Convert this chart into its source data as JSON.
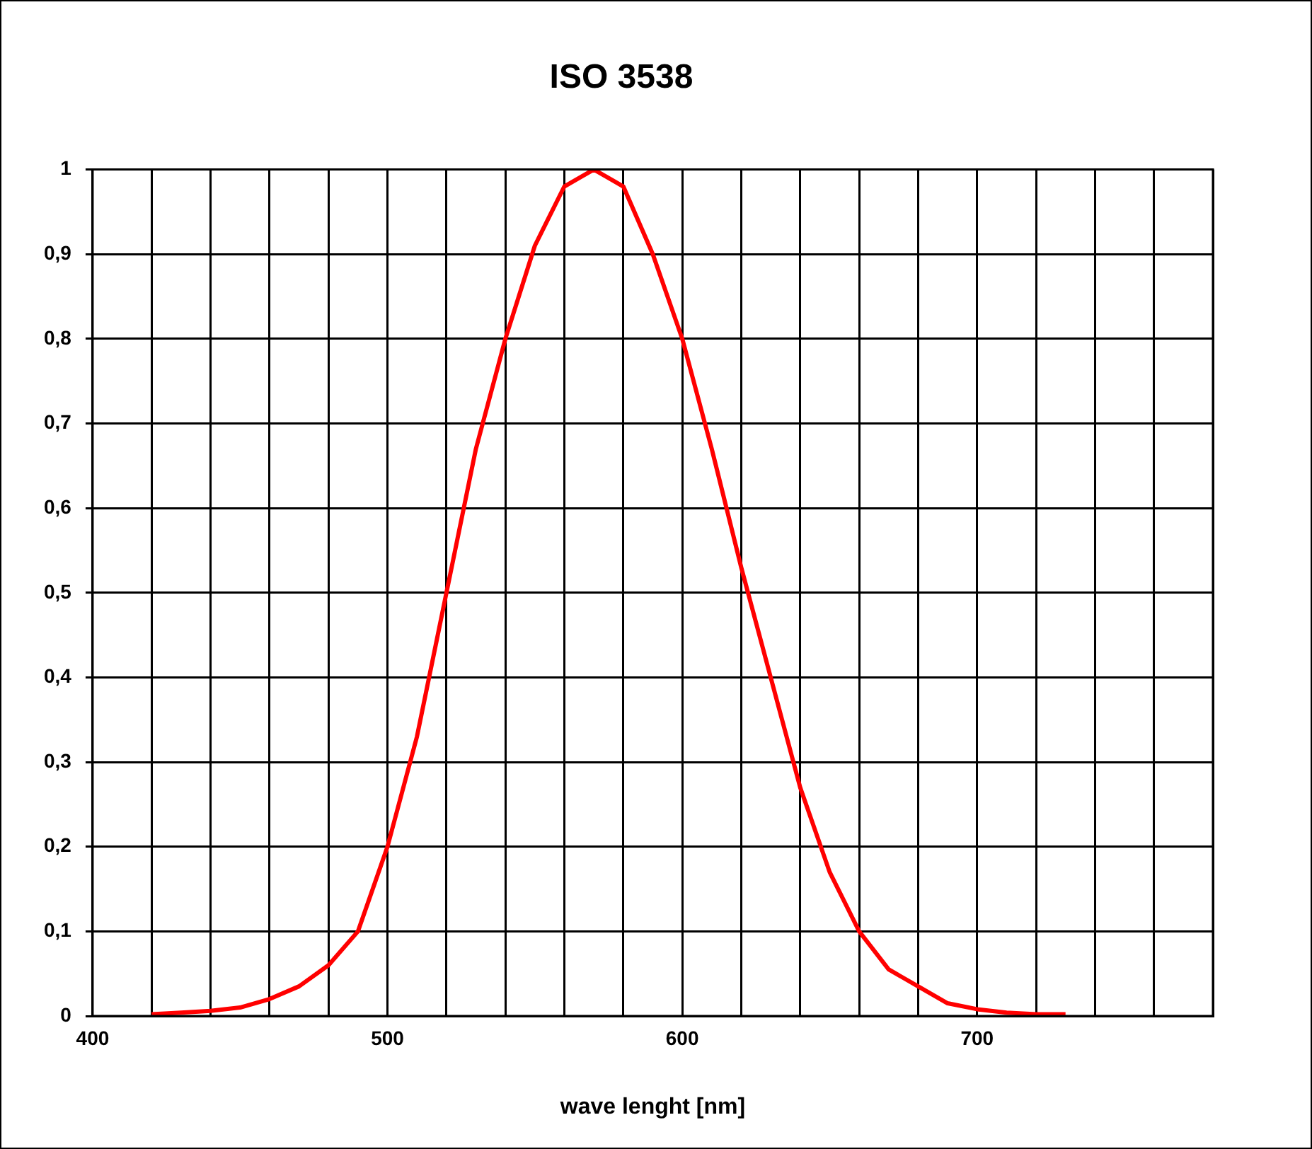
{
  "chart_data": {
    "type": "line",
    "title": "ISO 3538",
    "xlabel": "wave lenght [nm]",
    "x": [
      420,
      430,
      440,
      450,
      460,
      470,
      480,
      490,
      500,
      510,
      520,
      530,
      540,
      550,
      560,
      570,
      580,
      590,
      600,
      610,
      620,
      630,
      640,
      650,
      660,
      670,
      680,
      690,
      700,
      710,
      720,
      730
    ],
    "series": [
      {
        "color": "#ff0000",
        "values": [
          0.002,
          0.004,
          0.006,
          0.01,
          0.02,
          0.035,
          0.06,
          0.1,
          0.2,
          0.33,
          0.5,
          0.67,
          0.8,
          0.91,
          0.98,
          1.0,
          0.98,
          0.9,
          0.8,
          0.67,
          0.53,
          0.4,
          0.27,
          0.17,
          0.1,
          0.055,
          0.035,
          0.015,
          0.008,
          0.004,
          0.002,
          0.002
        ]
      }
    ],
    "xlim": [
      400,
      780
    ],
    "xticks": [
      400,
      {
        "value": 420,
        "label": null
      },
      {
        "value": 440,
        "label": null
      },
      {
        "value": 460,
        "label": null
      },
      {
        "value": 480,
        "label": null
      },
      500,
      {
        "value": 520,
        "label": null
      },
      {
        "value": 540,
        "label": null
      },
      {
        "value": 560,
        "label": null
      },
      {
        "value": 580,
        "label": null
      },
      600,
      {
        "value": 620,
        "label": null
      },
      {
        "value": 640,
        "label": null
      },
      {
        "value": 660,
        "label": null
      },
      {
        "value": 680,
        "label": null
      },
      700,
      {
        "value": 720,
        "label": null
      },
      {
        "value": 740,
        "label": null
      },
      {
        "value": 760,
        "label": null
      },
      {
        "value": 780,
        "label": null
      }
    ],
    "ylim": [
      0,
      1
    ],
    "yticks": [
      0,
      {
        "value": 0.1,
        "label": "0,1"
      },
      {
        "value": 0.2,
        "label": "0,2"
      },
      {
        "value": 0.3,
        "label": "0,3"
      },
      {
        "value": 0.4,
        "label": "0,4"
      },
      {
        "value": 0.5,
        "label": "0,5"
      },
      {
        "value": 0.6,
        "label": "0,6"
      },
      {
        "value": 0.7,
        "label": "0,7"
      },
      {
        "value": 0.8,
        "label": "0,8"
      },
      {
        "value": 0.9,
        "label": "0,9"
      },
      1
    ],
    "grid": true,
    "legend": false,
    "marker": "none",
    "line_style": "solid"
  }
}
